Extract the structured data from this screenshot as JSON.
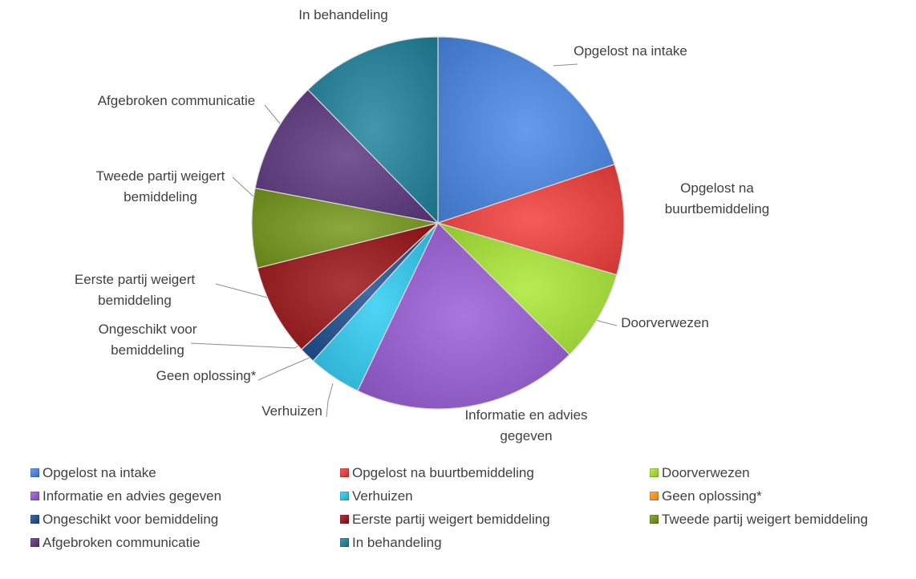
{
  "chart_data": {
    "type": "pie",
    "title": "",
    "start_angle_degrees": -90,
    "direction": "clockwise",
    "legend_position": "bottom",
    "series": [
      {
        "name": "",
        "slices": [
          {
            "label": "Opgelost na intake",
            "display_label": [
              "Opgelost na intake"
            ],
            "value": 19.9,
            "color": "#4a7fd0"
          },
          {
            "label": "Opgelost na buurtbemiddeling",
            "display_label": [
              "Opgelost na",
              "buurtbemiddeling"
            ],
            "value": 9.6,
            "color": "#d9413f"
          },
          {
            "label": "Doorverwezen",
            "display_label": [
              "Doorverwezen"
            ],
            "value": 8.0,
            "color": "#9bd038"
          },
          {
            "label": "Informatie en advies gegeven",
            "display_label": [
              "Informatie en advies",
              "gegeven"
            ],
            "value": 19.6,
            "color": "#8c5ac1"
          },
          {
            "label": "Verhuizen",
            "display_label": [
              "Verhuizen"
            ],
            "value": 4.6,
            "color": "#33b8d9"
          },
          {
            "label": "Geen oplossing*",
            "display_label": [
              "Geen oplossing*"
            ],
            "value": 0.0,
            "color": "#f08f2c"
          },
          {
            "label": "Ongeschikt voor bemiddeling",
            "display_label": [
              "Ongeschikt voor",
              "bemiddeling"
            ],
            "value": 1.4,
            "color": "#244f86"
          },
          {
            "label": "Eerste partij weigert bemiddeling",
            "display_label": [
              "Eerste partij weigert",
              "bemiddeling"
            ],
            "value": 8.0,
            "color": "#8f1d1f"
          },
          {
            "label": "Tweede partij weigert bemiddeling",
            "display_label": [
              "Tweede partij weigert",
              "bemiddeling"
            ],
            "value": 6.9,
            "color": "#6f8c22"
          },
          {
            "label": "Afgebroken communicatie",
            "display_label": [
              "Afgebroken communicatie"
            ],
            "value": 9.7,
            "color": "#5b3a78"
          },
          {
            "label": "In  behandeling",
            "display_label": [
              "In  behandeling"
            ],
            "value": 12.3,
            "color": "#277b91"
          }
        ]
      }
    ]
  }
}
